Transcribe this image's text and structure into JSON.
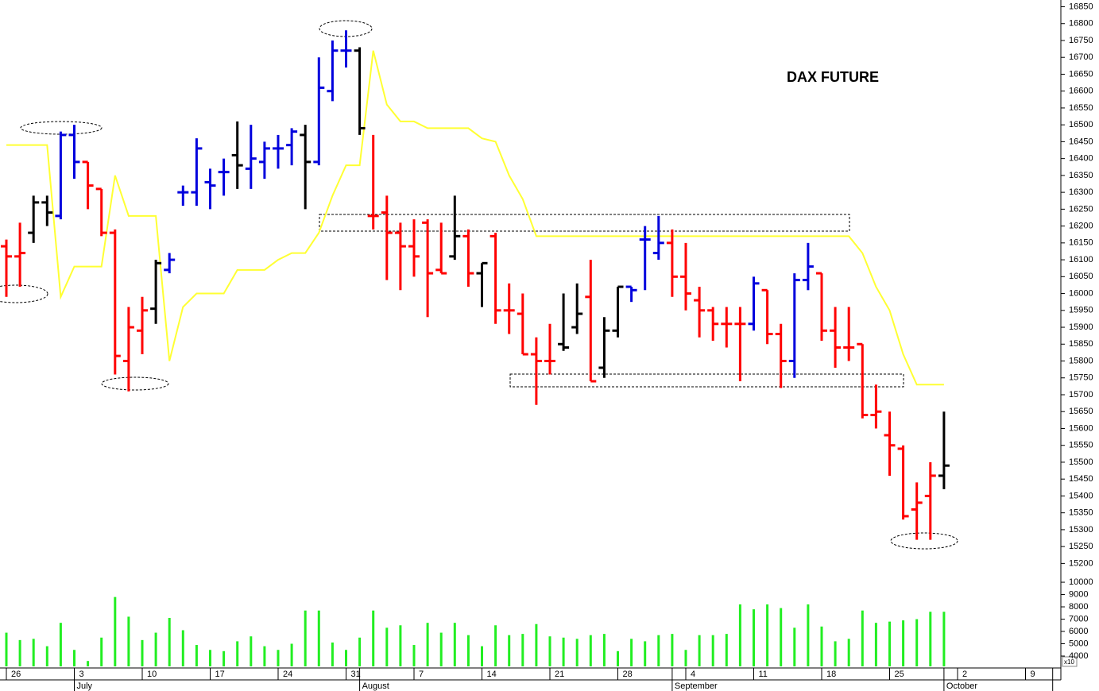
{
  "chart_data": {
    "type": "ohlc",
    "title": "DAX FUTURE",
    "categories": [
      "26",
      null,
      null,
      null,
      null,
      "3",
      null,
      null,
      null,
      null,
      "10",
      null,
      null,
      null,
      null,
      "17",
      null,
      null,
      null,
      null,
      "24",
      null,
      null,
      null,
      null,
      "31",
      null,
      null,
      null,
      null,
      "7",
      null,
      null,
      null,
      null,
      "14",
      null,
      null,
      null,
      null,
      "21",
      null,
      null,
      null,
      null,
      "28",
      null,
      null,
      null,
      null,
      "4",
      null,
      null,
      null,
      null,
      "11",
      null,
      null,
      null,
      null,
      "18",
      null,
      null,
      null,
      null,
      "25",
      null,
      null,
      null,
      null,
      "2",
      null,
      null,
      null,
      null,
      "9",
      null,
      null
    ],
    "months": [
      null,
      null,
      null,
      null,
      null,
      "July",
      null,
      null,
      null,
      null,
      null,
      null,
      null,
      null,
      null,
      null,
      null,
      null,
      null,
      null,
      null,
      null,
      null,
      null,
      null,
      null,
      "August",
      null,
      null,
      null,
      null,
      null,
      null,
      null,
      null,
      null,
      null,
      null,
      null,
      null,
      null,
      null,
      null,
      null,
      null,
      null,
      null,
      null,
      null,
      "September",
      null,
      null,
      null,
      null,
      null,
      null,
      null,
      null,
      null,
      null,
      null,
      null,
      null,
      null,
      null,
      null,
      null,
      null,
      null,
      "October",
      null,
      null,
      null,
      null,
      null,
      null,
      null
    ],
    "open": [
      16140,
      16110,
      16180,
      16270,
      16230,
      16470,
      16390,
      16310,
      16180,
      15800,
      15890,
      15955,
      16070,
      16300,
      16300,
      16330,
      16360,
      16410,
      16370,
      16390,
      16430,
      16440,
      16470,
      16390,
      16600,
      16720,
      16720,
      16230,
      16240,
      16180,
      16140,
      16210,
      16070,
      16110,
      16170,
      16060,
      16170,
      15950,
      15940,
      15820,
      15800,
      15850,
      15900,
      15990,
      15780,
      15890,
      16020,
      16160,
      16120,
      16150,
      16050,
      15980,
      15950,
      15910,
      15910,
      15910,
      16010,
      15880,
      15800,
      16040,
      16060,
      15890,
      15840,
      15850,
      15640,
      15580,
      15540,
      15360,
      15400,
      15460,
      null,
      null,
      null,
      null,
      null,
      null,
      null,
      null
    ],
    "high": [
      16160,
      16210,
      16290,
      16290,
      16480,
      16500,
      16390,
      16310,
      16190,
      15960,
      15990,
      16100,
      16120,
      16320,
      16460,
      16370,
      16400,
      16510,
      16500,
      16450,
      16470,
      16490,
      16500,
      16700,
      16750,
      16780,
      16730,
      16470,
      16290,
      16210,
      16220,
      16220,
      16210,
      16290,
      16190,
      16090,
      16180,
      16030,
      16000,
      15870,
      15910,
      16000,
      16030,
      16100,
      15930,
      16020,
      16020,
      16200,
      16230,
      16190,
      16150,
      16020,
      15960,
      15960,
      15960,
      16050,
      16010,
      15910,
      16060,
      16150,
      16060,
      15960,
      15960,
      15850,
      15730,
      15650,
      15550,
      15440,
      15500,
      15650,
      null,
      null,
      null,
      null,
      null,
      null,
      null,
      null
    ],
    "low": [
      15990,
      16020,
      16150,
      16200,
      16220,
      16340,
      16250,
      16170,
      15760,
      15710,
      15820,
      15910,
      16060,
      16260,
      16260,
      16250,
      16290,
      16310,
      16310,
      16340,
      16370,
      16380,
      16250,
      16380,
      16570,
      16670,
      16470,
      16190,
      16040,
      16010,
      16050,
      15930,
      16060,
      16100,
      16020,
      15960,
      15910,
      15880,
      15820,
      15670,
      15760,
      15830,
      15880,
      15740,
      15750,
      15870,
      15975,
      16010,
      16100,
      15990,
      15950,
      15870,
      15860,
      15840,
      15740,
      15890,
      15850,
      15720,
      15750,
      16010,
      15860,
      15780,
      15800,
      15630,
      15600,
      15460,
      15330,
      15270,
      15270,
      15420,
      null,
      null,
      null,
      null,
      null,
      null,
      null,
      null
    ],
    "close": [
      16110,
      16120,
      16270,
      16240,
      16470,
      16390,
      16320,
      16180,
      15815,
      15900,
      15950,
      16090,
      16100,
      16300,
      16430,
      16320,
      16360,
      16380,
      16400,
      16430,
      16430,
      16480,
      16390,
      16610,
      16720,
      16720,
      16490,
      16230,
      16180,
      16140,
      16110,
      16060,
      16060,
      16170,
      16060,
      16090,
      15950,
      15950,
      15820,
      15800,
      15800,
      15840,
      15940,
      15740,
      15890,
      16020,
      16010,
      16160,
      16150,
      16050,
      16000,
      15950,
      15910,
      15910,
      15910,
      16030,
      15880,
      15800,
      16040,
      16080,
      15890,
      15840,
      15840,
      15640,
      15650,
      15550,
      15340,
      15380,
      15460,
      15490,
      null,
      null,
      null,
      null,
      null,
      null,
      null,
      null
    ],
    "bar_colors": [
      "#ff0000",
      "#ff0000",
      "#000000",
      "#000000",
      "#0000dd",
      "#0000dd",
      "#ff0000",
      "#ff0000",
      "#ff0000",
      "#ff0000",
      "#ff0000",
      "#000000",
      "#0000dd",
      "#0000dd",
      "#0000dd",
      "#0000dd",
      "#0000dd",
      "#000000",
      "#0000dd",
      "#0000dd",
      "#0000dd",
      "#0000dd",
      "#000000",
      "#0000dd",
      "#0000dd",
      "#0000dd",
      "#000000",
      "#ff0000",
      "#ff0000",
      "#ff0000",
      "#ff0000",
      "#ff0000",
      "#ff0000",
      "#000000",
      "#ff0000",
      "#000000",
      "#ff0000",
      "#ff0000",
      "#ff0000",
      "#ff0000",
      "#ff0000",
      "#000000",
      "#000000",
      "#ff0000",
      "#000000",
      "#000000",
      "#0000dd",
      "#0000dd",
      "#0000dd",
      "#ff0000",
      "#ff0000",
      "#ff0000",
      "#ff0000",
      "#ff0000",
      "#ff0000",
      "#0000dd",
      "#ff0000",
      "#ff0000",
      "#0000dd",
      "#0000dd",
      "#ff0000",
      "#ff0000",
      "#ff0000",
      "#ff0000",
      "#ff0000",
      "#ff0000",
      "#ff0000",
      "#ff0000",
      "#ff0000",
      "#000000",
      null,
      null,
      null,
      null,
      null,
      null,
      null,
      null
    ],
    "stop_line": {
      "color": "#ffff33",
      "values": [
        16440,
        16440,
        16440,
        16440,
        15990,
        16080,
        16080,
        16080,
        16350,
        16230,
        16230,
        16230,
        15800,
        15960,
        16000,
        16000,
        16000,
        16070,
        16070,
        16070,
        16100,
        16120,
        16120,
        16180,
        16290,
        16380,
        16380,
        16720,
        16560,
        16510,
        16510,
        16490,
        16490,
        16490,
        16490,
        16460,
        16450,
        16350,
        16280,
        16170,
        16170,
        16170,
        16170,
        16170,
        16170,
        16170,
        16170,
        16170,
        16170,
        16170,
        16170,
        16170,
        16170,
        16170,
        16170,
        16170,
        16170,
        16170,
        16170,
        16170,
        16170,
        16170,
        16170,
        16120,
        16020,
        15950,
        15820,
        15730,
        15730,
        15730,
        null,
        null,
        null,
        null,
        null,
        null,
        null,
        null
      ]
    },
    "ylim": [
      15175,
      16870
    ],
    "yticks": [
      15200,
      15250,
      15300,
      15350,
      15400,
      15450,
      15500,
      15550,
      15600,
      15650,
      15700,
      15750,
      15800,
      15850,
      15900,
      15950,
      16000,
      16050,
      16100,
      16150,
      16200,
      16250,
      16300,
      16350,
      16400,
      16450,
      16500,
      16550,
      16600,
      16650,
      16700,
      16750,
      16800,
      16850
    ],
    "volume": {
      "color": "#22ee22",
      "values": [
        5900,
        5300,
        5400,
        4800,
        6700,
        4500,
        3600,
        5500,
        8800,
        7200,
        5300,
        5900,
        7100,
        6100,
        4900,
        4500,
        4400,
        5200,
        5600,
        4800,
        4500,
        5000,
        7700,
        7700,
        5100,
        4500,
        5500,
        7700,
        6300,
        6500,
        4900,
        6700,
        5900,
        6700,
        5700,
        4800,
        6500,
        5700,
        5800,
        6600,
        5600,
        5500,
        5400,
        5700,
        5800,
        4400,
        5400,
        5200,
        5700,
        5800,
        4500,
        5700,
        5700,
        5800,
        8200,
        7800,
        8200,
        7900,
        6300,
        8200,
        6400,
        5200,
        5400,
        7700,
        6700,
        6800,
        6900,
        7000,
        7600,
        7600,
        null,
        null,
        null,
        null,
        null,
        null,
        null,
        null
      ],
      "ylim": [
        3160,
        10520
      ],
      "yticks": [
        4000,
        5000,
        6000,
        7000,
        8000,
        9000,
        10000
      ],
      "scale_label": "x10"
    }
  }
}
